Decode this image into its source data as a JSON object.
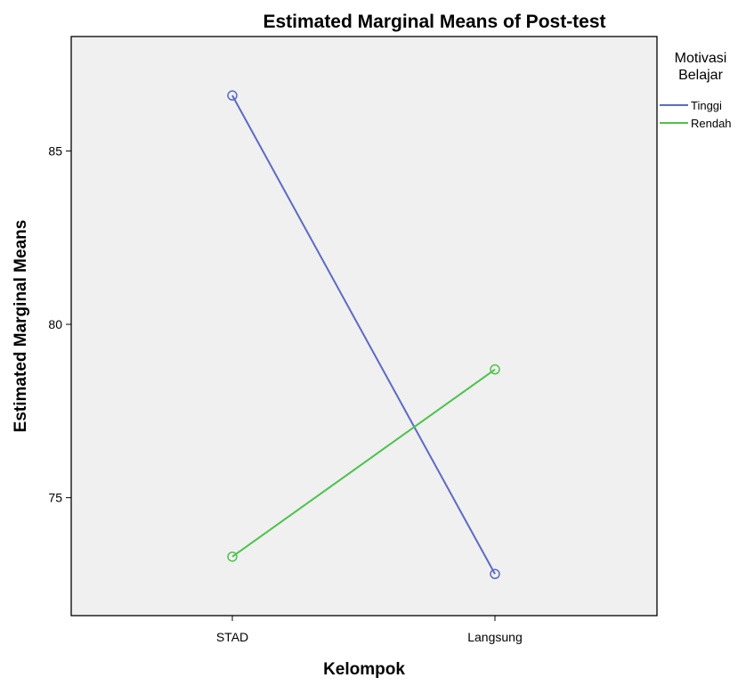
{
  "chart_data": {
    "type": "line",
    "title": "Estimated Marginal Means of Post-test",
    "xlabel": "Kelompok",
    "ylabel": "Estimated Marginal Means",
    "categories": [
      "STAD",
      "Langsung"
    ],
    "ylim": [
      71.6,
      88.3
    ],
    "yticks": [
      75,
      80,
      85
    ],
    "grid": false,
    "legend": {
      "title_lines": [
        "Motivasi",
        "Belajar"
      ],
      "placement": "right"
    },
    "series": [
      {
        "name": "Tinggi",
        "color": "#5b6ac5",
        "values": [
          86.6,
          72.8
        ]
      },
      {
        "name": "Rendah",
        "color": "#4cc34c",
        "values": [
          73.3,
          78.7
        ]
      }
    ]
  }
}
